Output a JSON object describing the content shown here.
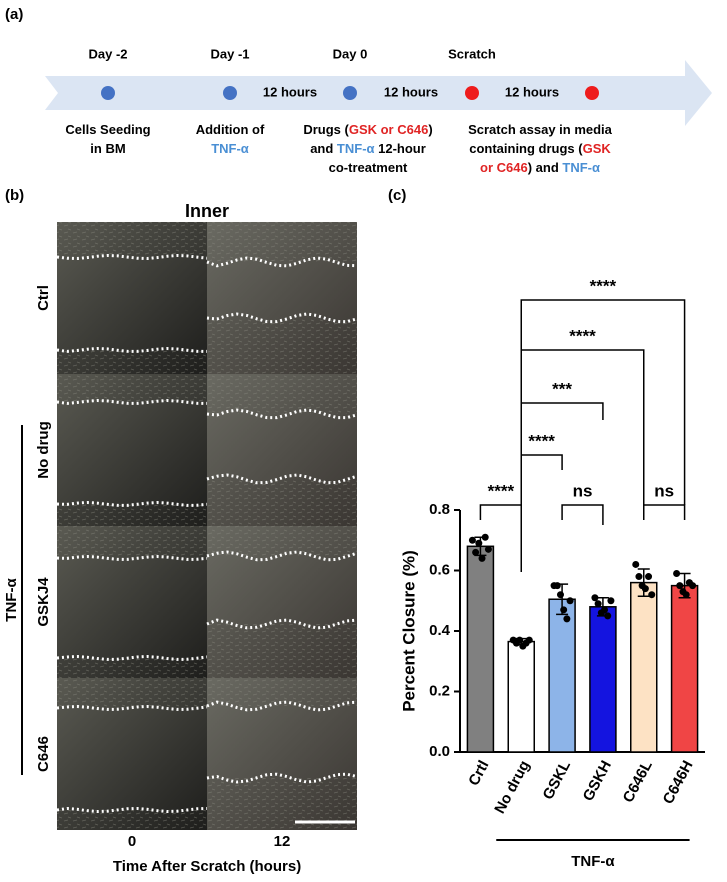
{
  "timeline": {
    "label": "(a)",
    "steps": [
      {
        "day": "Day -2",
        "description": [
          [
            {
              "text": "Cells Seeding"
            }
          ],
          [
            {
              "text": "in BM"
            }
          ]
        ]
      },
      {
        "day": "Day -1",
        "description": [
          [
            {
              "text": "Addition of"
            }
          ],
          [
            {
              "text": "TNF-α",
              "color": "#4a8fd4"
            }
          ]
        ]
      },
      {
        "day": "Day 0",
        "description": [
          [
            {
              "text": "Drugs ("
            },
            {
              "text": "GSK or C646",
              "color": "#e02424"
            },
            {
              "text": ")"
            }
          ],
          [
            {
              "text": "and "
            },
            {
              "text": "TNF-α",
              "color": "#4a8fd4"
            },
            {
              "text": " 12-hour"
            }
          ],
          [
            {
              "text": "co-treatment"
            }
          ]
        ]
      },
      {
        "day": "Scratch",
        "description": [
          [
            {
              "text": "Scratch assay in media"
            }
          ],
          [
            {
              "text": "containing drugs ("
            },
            {
              "text": "GSK",
              "color": "#e02424"
            }
          ],
          [
            {
              "text": "or C646",
              "color": "#e02424"
            },
            {
              "text": ") and "
            },
            {
              "text": "TNF-α",
              "color": "#4a8fd4"
            }
          ]
        ]
      }
    ],
    "intervals": [
      "12 hours",
      "12 hours",
      "12 hours"
    ],
    "dots": [
      "#4472c4",
      "#4472c4",
      "#4472c4",
      "#ee1c1c",
      "#ee1c1c"
    ]
  },
  "images": {
    "label": "(b)",
    "title": "Inner",
    "rows": [
      "Ctrl",
      "No drug",
      "GSKJ4",
      "C646"
    ],
    "group": "TNF-α",
    "columns": [
      "0",
      "12"
    ],
    "xlabel": "Time After Scratch (hours)"
  },
  "chart_data": {
    "type": "bar",
    "label": "(c)",
    "ylabel": "Percent Closure (%)",
    "categories": [
      "Crtl",
      "No drug",
      "GSKL",
      "GSKH",
      "C646L",
      "C646H"
    ],
    "values": [
      0.68,
      0.365,
      0.505,
      0.48,
      0.56,
      0.55
    ],
    "errors": [
      0.03,
      0.01,
      0.05,
      0.03,
      0.045,
      0.04
    ],
    "colors": [
      "#808080",
      "#ffffff",
      "#8db4e8",
      "#1414e0",
      "#fde2c4",
      "#f04545"
    ],
    "points": [
      [
        0.7,
        0.66,
        0.69,
        0.64,
        0.71,
        0.67
      ],
      [
        0.37,
        0.36,
        0.37,
        0.35,
        0.36,
        0.37
      ],
      [
        0.55,
        0.55,
        0.52,
        0.47,
        0.44,
        0.5
      ],
      [
        0.51,
        0.49,
        0.46,
        0.47,
        0.45,
        0.5
      ],
      [
        0.62,
        0.58,
        0.55,
        0.54,
        0.58,
        0.52
      ],
      [
        0.59,
        0.55,
        0.53,
        0.52,
        0.56,
        0.55
      ]
    ],
    "ylim": [
      0,
      0.8
    ],
    "yticks": [
      {
        "value": 0,
        "label": "0.0"
      },
      {
        "value": 0.2,
        "label": "0.2"
      },
      {
        "value": 0.4,
        "label": "0.4"
      },
      {
        "value": 0.6,
        "label": "0.6"
      },
      {
        "value": 0.8,
        "label": "0.8"
      }
    ],
    "significance": [
      "****",
      "ns",
      "ns",
      "****",
      "***",
      "****",
      "****"
    ],
    "group": "TNF-α"
  }
}
